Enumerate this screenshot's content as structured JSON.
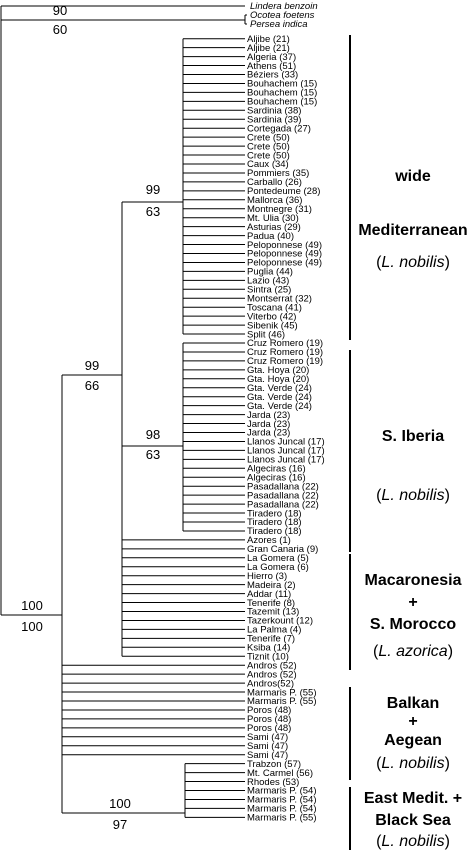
{
  "outgroups": [
    {
      "name": "Lindera benzoin",
      "italic": true
    },
    {
      "name": "Ocotea foetens",
      "italic": true
    },
    {
      "name": "Persea indica",
      "italic": true
    }
  ],
  "leaves": [
    "Aljibe (21)",
    "Aljibe (21)",
    "Algeria (37)",
    "Athens (51)",
    "Béziers (33)",
    "Bouhachem (15)",
    "Bouhachem (15)",
    "Bouhachem (15)",
    "Sardinia (38)",
    "Sardinia (39)",
    "Cortegada (27)",
    "Crete (50)",
    "Crete (50)",
    "Crete (50)",
    "Caux (34)",
    "Pommiers (35)",
    "Carballo (26)",
    "Pontedeume (28)",
    "Mallorca (36)",
    "Montnegre (31)",
    "Mt. Ulia (30)",
    "Asturias (29)",
    "Padua (40)",
    "Peloponnese (49)",
    "Peloponnese (49)",
    "Peloponnese (49)",
    "Puglia (44)",
    "Lazio (43)",
    "Sintra (25)",
    "Montserrat (32)",
    "Toscana (41)",
    "Viterbo (42)",
    "Sibenik (45)",
    "Split (46)",
    "Cruz Romero (19)",
    "Cruz Romero (19)",
    "Cruz Romero (19)",
    "Gta. Hoya (20)",
    "Gta. Hoya (20)",
    "Gta. Verde (24)",
    "Gta. Verde (24)",
    "Gta. Verde (24)",
    "Jarda (23)",
    "Jarda (23)",
    "Jarda (23)",
    "Llanos Juncal (17)",
    "Llanos Juncal (17)",
    "Llanos Juncal (17)",
    "Algeciras (16)",
    "Algeciras (16)",
    "Pasadallana (22)",
    "Pasadallana (22)",
    "Pasadallana (22)",
    "Tiradero (18)",
    "Tiradero (18)",
    "Tiradero (18)",
    "Azores (1)",
    "Gran Canaria (9)",
    "La Gomera (5)",
    "La Gomera (6)",
    "Hierro (3)",
    "Madeira (2)",
    "Addar (11)",
    "Tenerife (8)",
    "Tazemit (13)",
    "Tazerkount (12)",
    "La Palma (4)",
    "Tenerife (7)",
    "Ksiba (14)",
    "Tiznit (10)",
    "Andros (52)",
    "Andros (52)",
    "Andros(52)",
    "Marmaris P. (55)",
    "Marmaris P. (55)",
    "Poros (48)",
    "Poros (48)",
    "Poros (48)",
    "Sami (47)",
    "Sami (47)",
    "Sami (47)",
    "Trabzon (57)",
    "Mt. Carmel (56)",
    "Rhodes (53)",
    "Marmaris P. (54)",
    "Marmaris P. (54)",
    "Marmaris P. (54)",
    "Marmaris P. (55)"
  ],
  "support": {
    "outgroup_top": "90",
    "outgroup_bottom": "60",
    "root_top": "100",
    "root_bottom": "100",
    "ingroup_top": "99",
    "ingroup_bottom": "66",
    "med_top": "99",
    "med_bottom": "63",
    "iberia_top": "98",
    "iberia_bottom": "63",
    "east_top": "100",
    "east_bottom": "97"
  },
  "groups": [
    {
      "lines": [
        "wide",
        "Mediterranean"
      ],
      "species": "L. nobilis"
    },
    {
      "lines": [
        "S. Iberia"
      ],
      "species": "L. nobilis"
    },
    {
      "lines": [
        "Macaronesia",
        "+",
        "S. Morocco"
      ],
      "species": "L. azorica"
    },
    {
      "lines": [
        "Balkan",
        "+",
        "Aegean"
      ],
      "species": "L. nobilis"
    },
    {
      "lines": [
        "East Medit. +",
        "Black Sea"
      ],
      "species": "L. nobilis"
    }
  ]
}
